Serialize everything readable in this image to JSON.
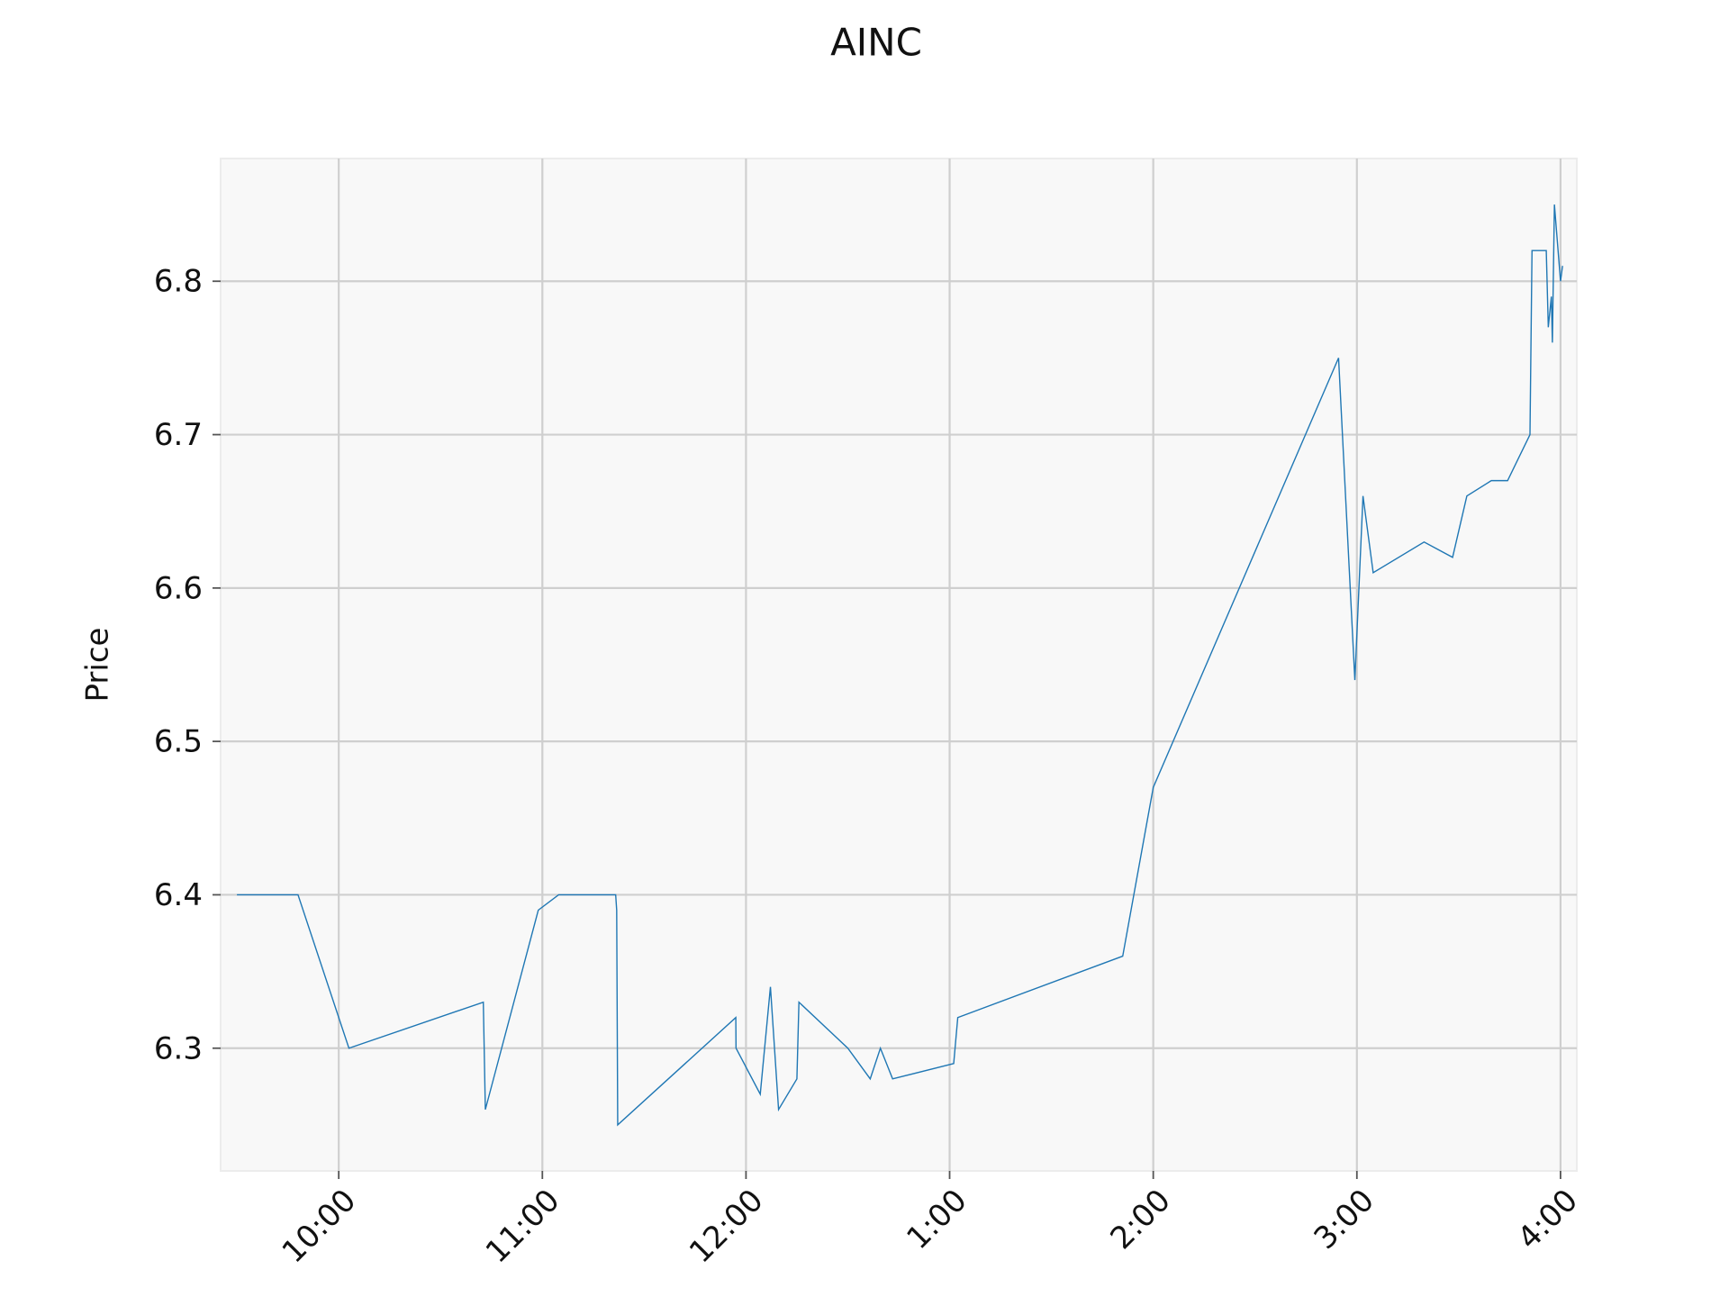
{
  "chart_data": {
    "type": "line",
    "title": "AINC",
    "ylabel": "Price",
    "x": [
      9.5,
      9.8,
      10.05,
      10.71,
      10.72,
      10.98,
      11.08,
      11.36,
      11.365,
      11.37,
      11.95,
      11.951,
      12.07,
      12.12,
      12.16,
      12.25,
      12.26,
      12.5,
      12.61,
      12.66,
      12.72,
      13.02,
      13.04,
      13.85,
      14.0,
      14.91,
      14.99,
      15.03,
      15.08,
      15.33,
      15.47,
      15.54,
      15.66,
      15.74,
      15.85,
      15.86,
      15.93,
      15.94,
      15.955,
      15.96,
      15.97,
      16.0,
      16.01
    ],
    "series": [
      {
        "name": "AINC",
        "color": "#1f77b4",
        "values": [
          6.4,
          6.4,
          6.3,
          6.33,
          6.26,
          6.39,
          6.4,
          6.4,
          6.39,
          6.25,
          6.32,
          6.3,
          6.27,
          6.34,
          6.26,
          6.28,
          6.33,
          6.3,
          6.28,
          6.3,
          6.28,
          6.29,
          6.32,
          6.36,
          6.47,
          6.75,
          6.54,
          6.66,
          6.61,
          6.63,
          6.62,
          6.66,
          6.67,
          6.67,
          6.7,
          6.82,
          6.82,
          6.77,
          6.79,
          6.76,
          6.85,
          6.8,
          6.81
        ]
      }
    ],
    "xlim": [
      9.42,
      16.08
    ],
    "xticks": [
      {
        "value": 10,
        "label": "10:00"
      },
      {
        "value": 11,
        "label": "11:00"
      },
      {
        "value": 12,
        "label": "12:00"
      },
      {
        "value": 13,
        "label": "1:00"
      },
      {
        "value": 14,
        "label": "2:00"
      },
      {
        "value": 15,
        "label": "3:00"
      },
      {
        "value": 16,
        "label": "4:00"
      }
    ],
    "ylim": [
      6.22,
      6.88
    ],
    "yticks": [
      {
        "value": 6.3,
        "label": "6.3"
      },
      {
        "value": 6.4,
        "label": "6.4"
      },
      {
        "value": 6.5,
        "label": "6.5"
      },
      {
        "value": 6.6,
        "label": "6.6"
      },
      {
        "value": 6.7,
        "label": "6.7"
      },
      {
        "value": 6.8,
        "label": "6.8"
      }
    ],
    "grid": true
  }
}
